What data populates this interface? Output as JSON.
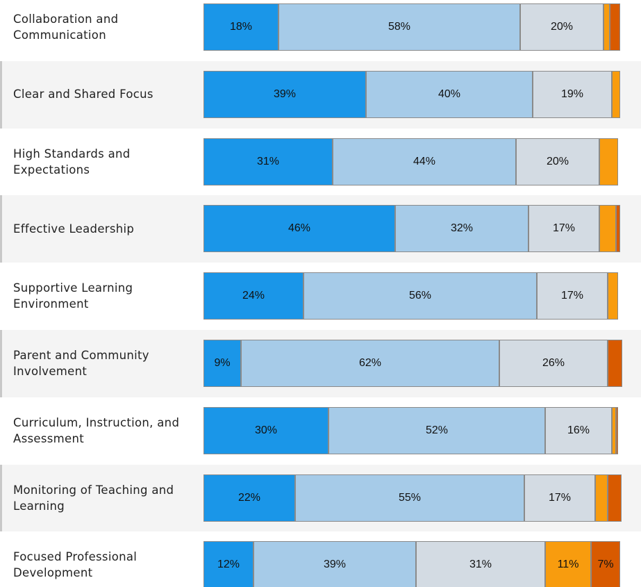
{
  "chart_data": {
    "type": "stacked_bar_h",
    "categories": [
      "Collaboration and\nCommunication",
      "Clear and Shared Focus",
      "High Standards and\nExpectations",
      "Effective Leadership",
      "Supportive Learning\nEnvironment",
      "Parent and Community\nInvolvement",
      "Curriculum, Instruction, and\nAssessment",
      "Monitoring of Teaching and\nLearning",
      "Focused Professional\nDevelopment"
    ],
    "xlim": [
      0,
      100
    ],
    "series": [
      {
        "color": "#1a96e8",
        "values": [
          18,
          39,
          31,
          46,
          24,
          9,
          30,
          22,
          12
        ],
        "value_labels": [
          "18%",
          "39%",
          "31%",
          "46%",
          "24%",
          "9%",
          "30%",
          "22%",
          "12%"
        ]
      },
      {
        "color": "#a6cbe8",
        "values": [
          58,
          40,
          44,
          32,
          56,
          62,
          52,
          55,
          39
        ],
        "value_labels": [
          "58%",
          "40%",
          "44%",
          "32%",
          "56%",
          "62%",
          "52%",
          "55%",
          "39%"
        ]
      },
      {
        "color": "#d3dbe3",
        "values": [
          20,
          19,
          20,
          17,
          17,
          26,
          16,
          17,
          31
        ],
        "value_labels": [
          "20%",
          "19%",
          "20%",
          "17%",
          "17%",
          "26%",
          "16%",
          "17%",
          "31%"
        ]
      },
      {
        "color": "#f89c0e",
        "values": [
          1.5,
          2,
          4.5,
          4,
          2.5,
          0,
          1,
          3,
          11
        ],
        "value_labels": [
          null,
          null,
          null,
          null,
          null,
          null,
          null,
          null,
          "11%"
        ]
      },
      {
        "color": "#d85a00",
        "values": [
          2.5,
          0,
          0,
          1,
          0,
          3.5,
          0.5,
          3.3,
          7
        ],
        "value_labels": [
          null,
          null,
          null,
          null,
          null,
          null,
          null,
          null,
          "7%"
        ]
      }
    ],
    "row_band_color": "#f4f4f4"
  }
}
